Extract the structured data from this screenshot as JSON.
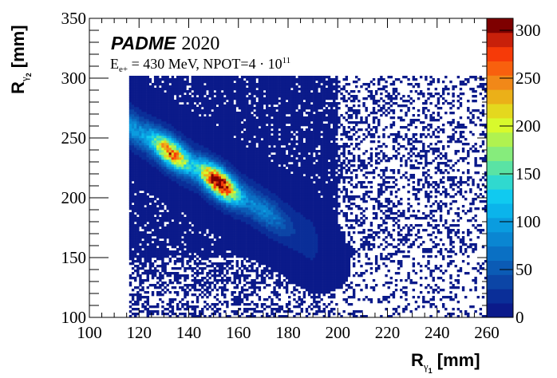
{
  "chart_data": {
    "type": "heatmap",
    "title": "PADME",
    "title_year": "2020",
    "subtitle": {
      "prefix": "E",
      "sub": "e+",
      "middle": " = 430 MeV, NPOT=4 · 10",
      "sup": "11"
    },
    "xlabel": {
      "main": "R",
      "sub": "γ",
      "subsub": "1",
      "unit": " [mm]"
    },
    "ylabel": {
      "main": "R",
      "sub": "γ",
      "subsub": "2",
      "unit": " [mm]"
    },
    "xlim": [
      100,
      260
    ],
    "ylim": [
      100,
      350
    ],
    "zlim": [
      0,
      312.5
    ],
    "xticks": [
      "100",
      "120",
      "140",
      "160",
      "180",
      "200",
      "220",
      "240",
      "260"
    ],
    "yticks": [
      "100",
      "150",
      "200",
      "250",
      "300",
      "350"
    ],
    "zticks": [
      "0",
      "50",
      "100",
      "150",
      "200",
      "250",
      "300"
    ],
    "bin_size": [
      1,
      2
    ],
    "populated_region": {
      "x": [
        116,
        260
      ],
      "y": [
        100,
        302
      ]
    },
    "band": {
      "start": [
        116,
        260
      ],
      "end": [
        195,
        157
      ],
      "sigma_y": 8
    },
    "peaks": [
      {
        "x": 133,
        "y": 219,
        "value": 235
      },
      {
        "x": 152,
        "y": 195,
        "value": 312
      }
    ],
    "palette": [
      "#0b1a8a",
      "#0a2e98",
      "#0c45a6",
      "#0b5bb5",
      "#0a70c4",
      "#0a86d2",
      "#0a9cdf",
      "#0bb4eb",
      "#10caf0",
      "#30d9cf",
      "#5ae3a4",
      "#86ec7c",
      "#b0f250",
      "#d8fa2c",
      "#e4d81e",
      "#ebb018",
      "#f18818",
      "#f8600e",
      "#f63a08",
      "#c8200a"
    ],
    "palette_top": "#7e0000"
  }
}
